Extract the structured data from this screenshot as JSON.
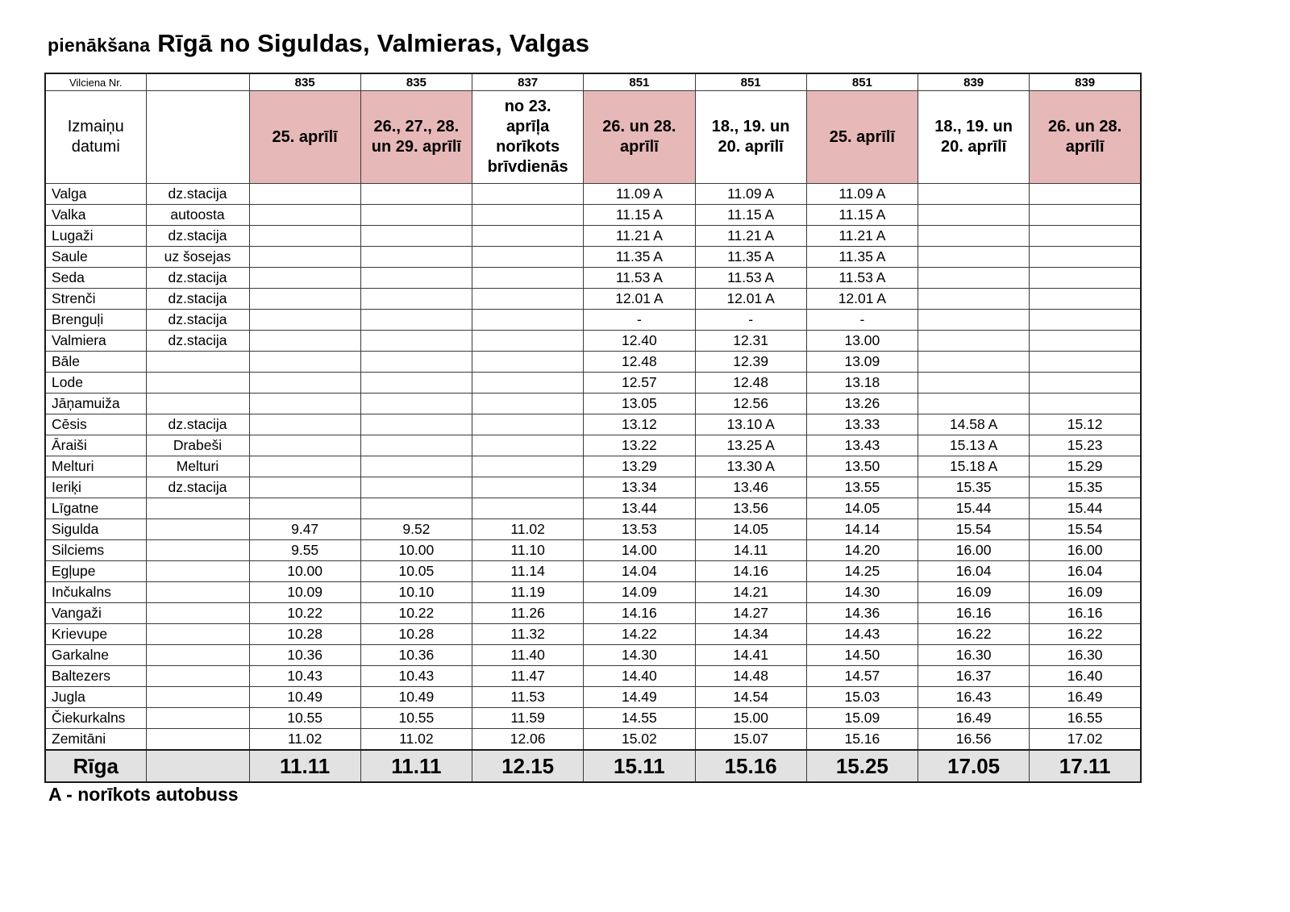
{
  "title": {
    "prefix": "pienākšana",
    "main": "Rīgā no Siguldas, Valmieras, Valgas"
  },
  "table": {
    "corner_label": "Vilciena Nr.",
    "dates_label": "Izmaiņu datumi",
    "columns": [
      {
        "train": "835",
        "dates": "25. aprīlī",
        "highlight": true
      },
      {
        "train": "835",
        "dates": "26., 27., 28. un 29. aprīlī",
        "highlight": true
      },
      {
        "train": "837",
        "dates": "no 23. aprīļa norīkots brīvdienās",
        "highlight": false
      },
      {
        "train": "851",
        "dates": "26. un 28. aprīlī",
        "highlight": true
      },
      {
        "train": "851",
        "dates": "18., 19. un 20. aprīlī",
        "highlight": false
      },
      {
        "train": "851",
        "dates": "25. aprīlī",
        "highlight": true
      },
      {
        "train": "839",
        "dates": "18., 19. un 20. aprīlī",
        "highlight": false
      },
      {
        "train": "839",
        "dates": "26. un 28. aprīlī",
        "highlight": true
      }
    ],
    "rows": [
      {
        "station": "Valga",
        "stop": "dz.stacija",
        "times": [
          "",
          "",
          "",
          "11.09 A",
          "11.09 A",
          "11.09 A",
          "",
          ""
        ]
      },
      {
        "station": "Valka",
        "stop": "autoosta",
        "times": [
          "",
          "",
          "",
          "11.15 A",
          "11.15 A",
          "11.15 A",
          "",
          ""
        ]
      },
      {
        "station": "Lugaži",
        "stop": "dz.stacija",
        "times": [
          "",
          "",
          "",
          "11.21 A",
          "11.21 A",
          "11.21 A",
          "",
          ""
        ]
      },
      {
        "station": "Saule",
        "stop": "uz šosejas",
        "times": [
          "",
          "",
          "",
          "11.35 A",
          "11.35 A",
          "11.35 A",
          "",
          ""
        ]
      },
      {
        "station": "Seda",
        "stop": "dz.stacija",
        "times": [
          "",
          "",
          "",
          "11.53 A",
          "11.53 A",
          "11.53 A",
          "",
          ""
        ]
      },
      {
        "station": "Strenči",
        "stop": "dz.stacija",
        "times": [
          "",
          "",
          "",
          "12.01 A",
          "12.01 A",
          "12.01 A",
          "",
          ""
        ]
      },
      {
        "station": "Brenguļi",
        "stop": "dz.stacija",
        "times": [
          "",
          "",
          "",
          "-",
          "-",
          "-",
          "",
          ""
        ]
      },
      {
        "station": "Valmiera",
        "stop": "dz.stacija",
        "times": [
          "",
          "",
          "",
          "12.40",
          "12.31",
          "13.00",
          "",
          ""
        ]
      },
      {
        "station": "Bāle",
        "stop": "",
        "times": [
          "",
          "",
          "",
          "12.48",
          "12.39",
          "13.09",
          "",
          ""
        ]
      },
      {
        "station": "Lode",
        "stop": "",
        "times": [
          "",
          "",
          "",
          "12.57",
          "12.48",
          "13.18",
          "",
          ""
        ]
      },
      {
        "station": "Jāņamuiža",
        "stop": "",
        "times": [
          "",
          "",
          "",
          "13.05",
          "12.56",
          "13.26",
          "",
          ""
        ]
      },
      {
        "station": "Cēsis",
        "stop": "dz.stacija",
        "times": [
          "",
          "",
          "",
          "13.12",
          "13.10 A",
          "13.33",
          "14.58 A",
          "15.12"
        ]
      },
      {
        "station": "Āraiši",
        "stop": "Drabeši",
        "times": [
          "",
          "",
          "",
          "13.22",
          "13.25 A",
          "13.43",
          "15.13 A",
          "15.23"
        ]
      },
      {
        "station": "Melturi",
        "stop": "Melturi",
        "times": [
          "",
          "",
          "",
          "13.29",
          "13.30 A",
          "13.50",
          "15.18 A",
          "15.29"
        ]
      },
      {
        "station": "Ieriķi",
        "stop": "dz.stacija",
        "times": [
          "",
          "",
          "",
          "13.34",
          "13.46",
          "13.55",
          "15.35",
          "15.35"
        ]
      },
      {
        "station": "Līgatne",
        "stop": "",
        "times": [
          "",
          "",
          "",
          "13.44",
          "13.56",
          "14.05",
          "15.44",
          "15.44"
        ]
      },
      {
        "station": "Sigulda",
        "stop": "",
        "times": [
          "9.47",
          "9.52",
          "11.02",
          "13.53",
          "14.05",
          "14.14",
          "15.54",
          "15.54"
        ]
      },
      {
        "station": "Silciems",
        "stop": "",
        "times": [
          "9.55",
          "10.00",
          "11.10",
          "14.00",
          "14.11",
          "14.20",
          "16.00",
          "16.00"
        ]
      },
      {
        "station": "Egļupe",
        "stop": "",
        "times": [
          "10.00",
          "10.05",
          "11.14",
          "14.04",
          "14.16",
          "14.25",
          "16.04",
          "16.04"
        ]
      },
      {
        "station": "Inčukalns",
        "stop": "",
        "times": [
          "10.09",
          "10.10",
          "11.19",
          "14.09",
          "14.21",
          "14.30",
          "16.09",
          "16.09"
        ]
      },
      {
        "station": "Vangaži",
        "stop": "",
        "times": [
          "10.22",
          "10.22",
          "11.26",
          "14.16",
          "14.27",
          "14.36",
          "16.16",
          "16.16"
        ]
      },
      {
        "station": "Krievupe",
        "stop": "",
        "times": [
          "10.28",
          "10.28",
          "11.32",
          "14.22",
          "14.34",
          "14.43",
          "16.22",
          "16.22"
        ]
      },
      {
        "station": "Garkalne",
        "stop": "",
        "times": [
          "10.36",
          "10.36",
          "11.40",
          "14.30",
          "14.41",
          "14.50",
          "16.30",
          "16.30"
        ]
      },
      {
        "station": "Baltezers",
        "stop": "",
        "times": [
          "10.43",
          "10.43",
          "11.47",
          "14.40",
          "14.48",
          "14.57",
          "16.37",
          "16.40"
        ]
      },
      {
        "station": "Jugla",
        "stop": "",
        "times": [
          "10.49",
          "10.49",
          "11.53",
          "14.49",
          "14.54",
          "15.03",
          "16.43",
          "16.49"
        ]
      },
      {
        "station": "Čiekurkalns",
        "stop": "",
        "times": [
          "10.55",
          "10.55",
          "11.59",
          "14.55",
          "15.00",
          "15.09",
          "16.49",
          "16.55"
        ]
      },
      {
        "station": "Zemitāni",
        "stop": "",
        "times": [
          "11.02",
          "11.02",
          "12.06",
          "15.02",
          "15.07",
          "15.16",
          "16.56",
          "17.02"
        ]
      }
    ],
    "final_row": {
      "station": "Rīga",
      "stop": "",
      "times": [
        "11.11",
        "11.11",
        "12.15",
        "15.11",
        "15.16",
        "15.25",
        "17.05",
        "17.11"
      ]
    }
  },
  "footer": {
    "note": "A - norīkots autobuss"
  },
  "colors": {
    "highlight": "#e7b8b8",
    "final_row_bg": "#e2e2e2"
  }
}
